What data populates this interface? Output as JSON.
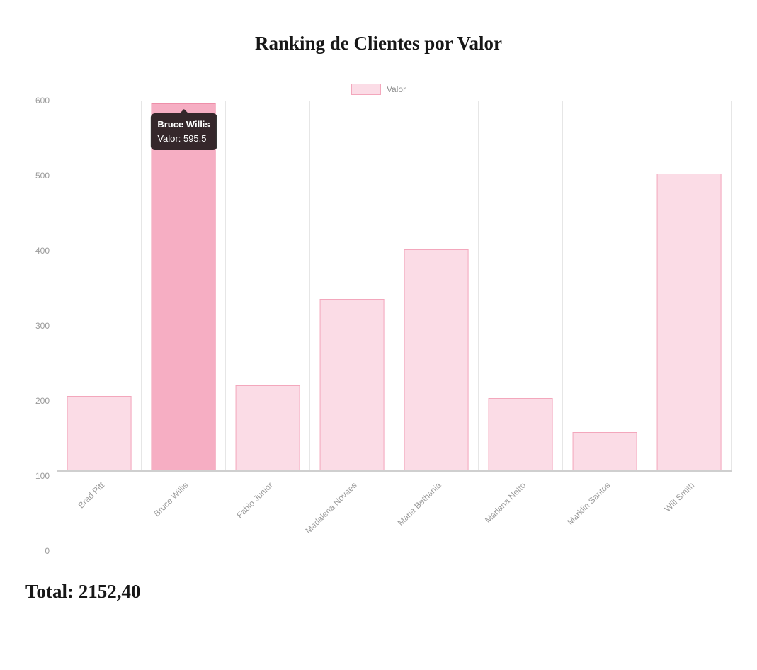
{
  "page": {
    "title": "Ranking de Clientes por Valor",
    "total_label": "Total: 2152,40"
  },
  "chart_data": {
    "type": "bar",
    "title": "Ranking de Clientes por Valor",
    "categories": [
      "Brad Pitt",
      "Bruce Willis",
      "Fabio Junior",
      "Madalena Novaes",
      "Maria Bethania",
      "Mariana Netto",
      "Marklin Santos",
      "Will Smith"
    ],
    "series": [
      {
        "name": "Valor",
        "values": [
          120.9,
          595.5,
          138.5,
          277.8,
          358.2,
          117.5,
          62.5,
          481.5
        ]
      }
    ],
    "xlabel": "",
    "ylabel": "",
    "ylim": [
      0,
      600
    ],
    "yticks": [
      0,
      100,
      200,
      300,
      400,
      500,
      600
    ],
    "grid": "vertical",
    "legend": {
      "label": "Valor",
      "position": "top"
    },
    "highlighted_index": 1,
    "tooltip": {
      "title": "Bruce Willis",
      "line": "Valor: 595.5"
    },
    "colors": {
      "bar_fill": "#fbdce6",
      "bar_border": "#f3a7bc",
      "bar_hover_fill": "#f6aec3",
      "bar_hover_border": "#ee8fa9",
      "grid": "#e6e6e6",
      "axis_text": "#9b9b9b"
    }
  }
}
